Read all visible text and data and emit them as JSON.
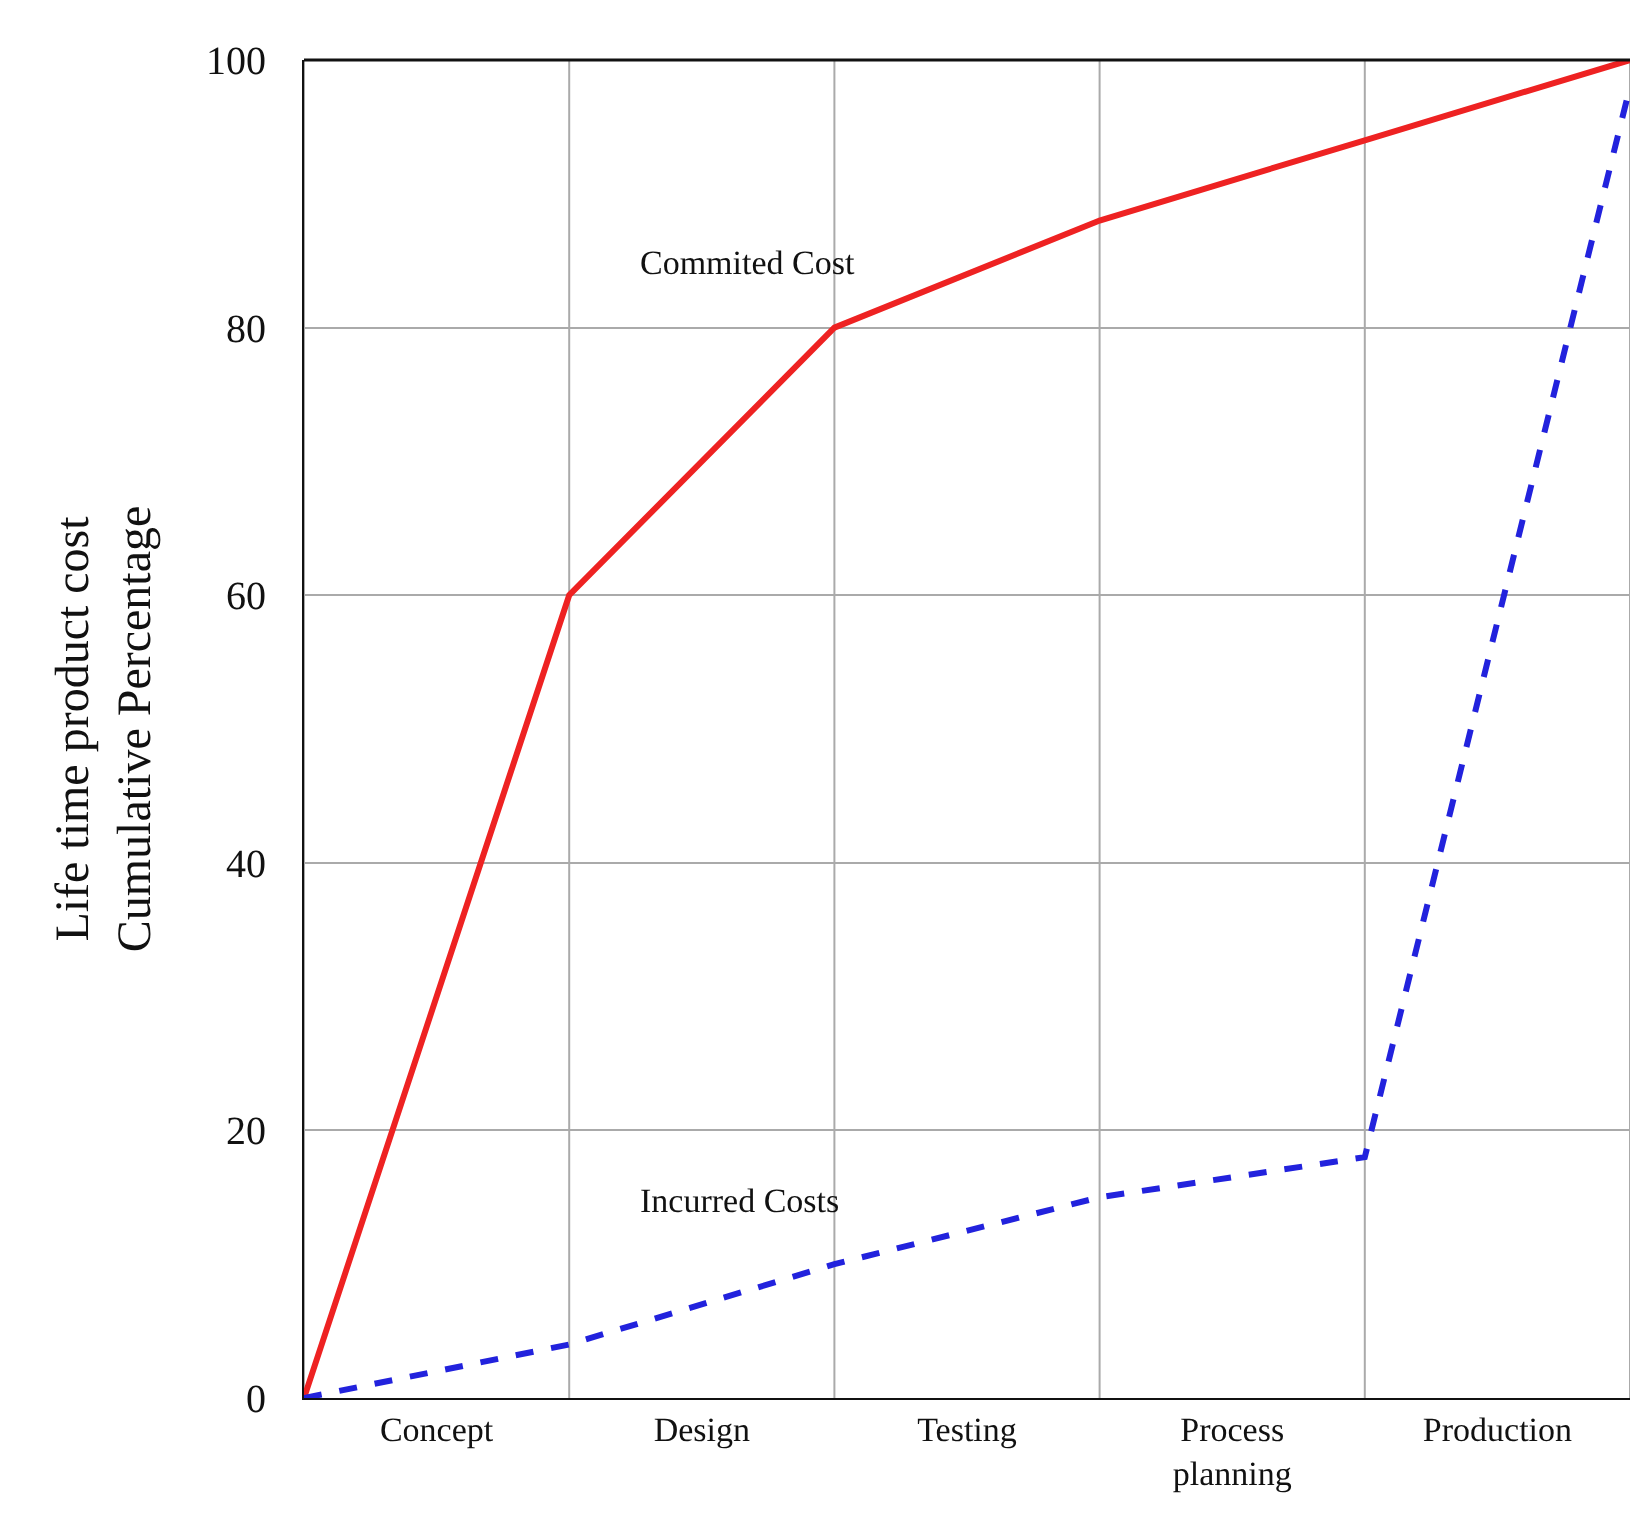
{
  "chart_data": {
    "type": "line",
    "ylabel": "Life time product cost\nCumulative Percentage",
    "categories": [
      null,
      "Concept",
      null,
      "Design",
      null,
      "Testing",
      null,
      "Process\nplanning",
      null,
      "Production",
      null
    ],
    "ylim": [
      0,
      100
    ],
    "yticks": [
      0,
      20,
      40,
      60,
      80,
      100
    ],
    "grid": true,
    "legend": false,
    "marker": "none",
    "series": [
      {
        "name": "Commited Cost",
        "color": "#ee2222",
        "line_style": "solid",
        "values": [
          0,
          null,
          60,
          null,
          80,
          null,
          88,
          null,
          94,
          null,
          100
        ]
      },
      {
        "name": "Incurred Costs",
        "color": "#2222dd",
        "line_style": "dashed",
        "values": [
          0,
          null,
          4,
          null,
          10,
          null,
          15,
          null,
          18,
          null,
          98
        ]
      }
    ]
  }
}
